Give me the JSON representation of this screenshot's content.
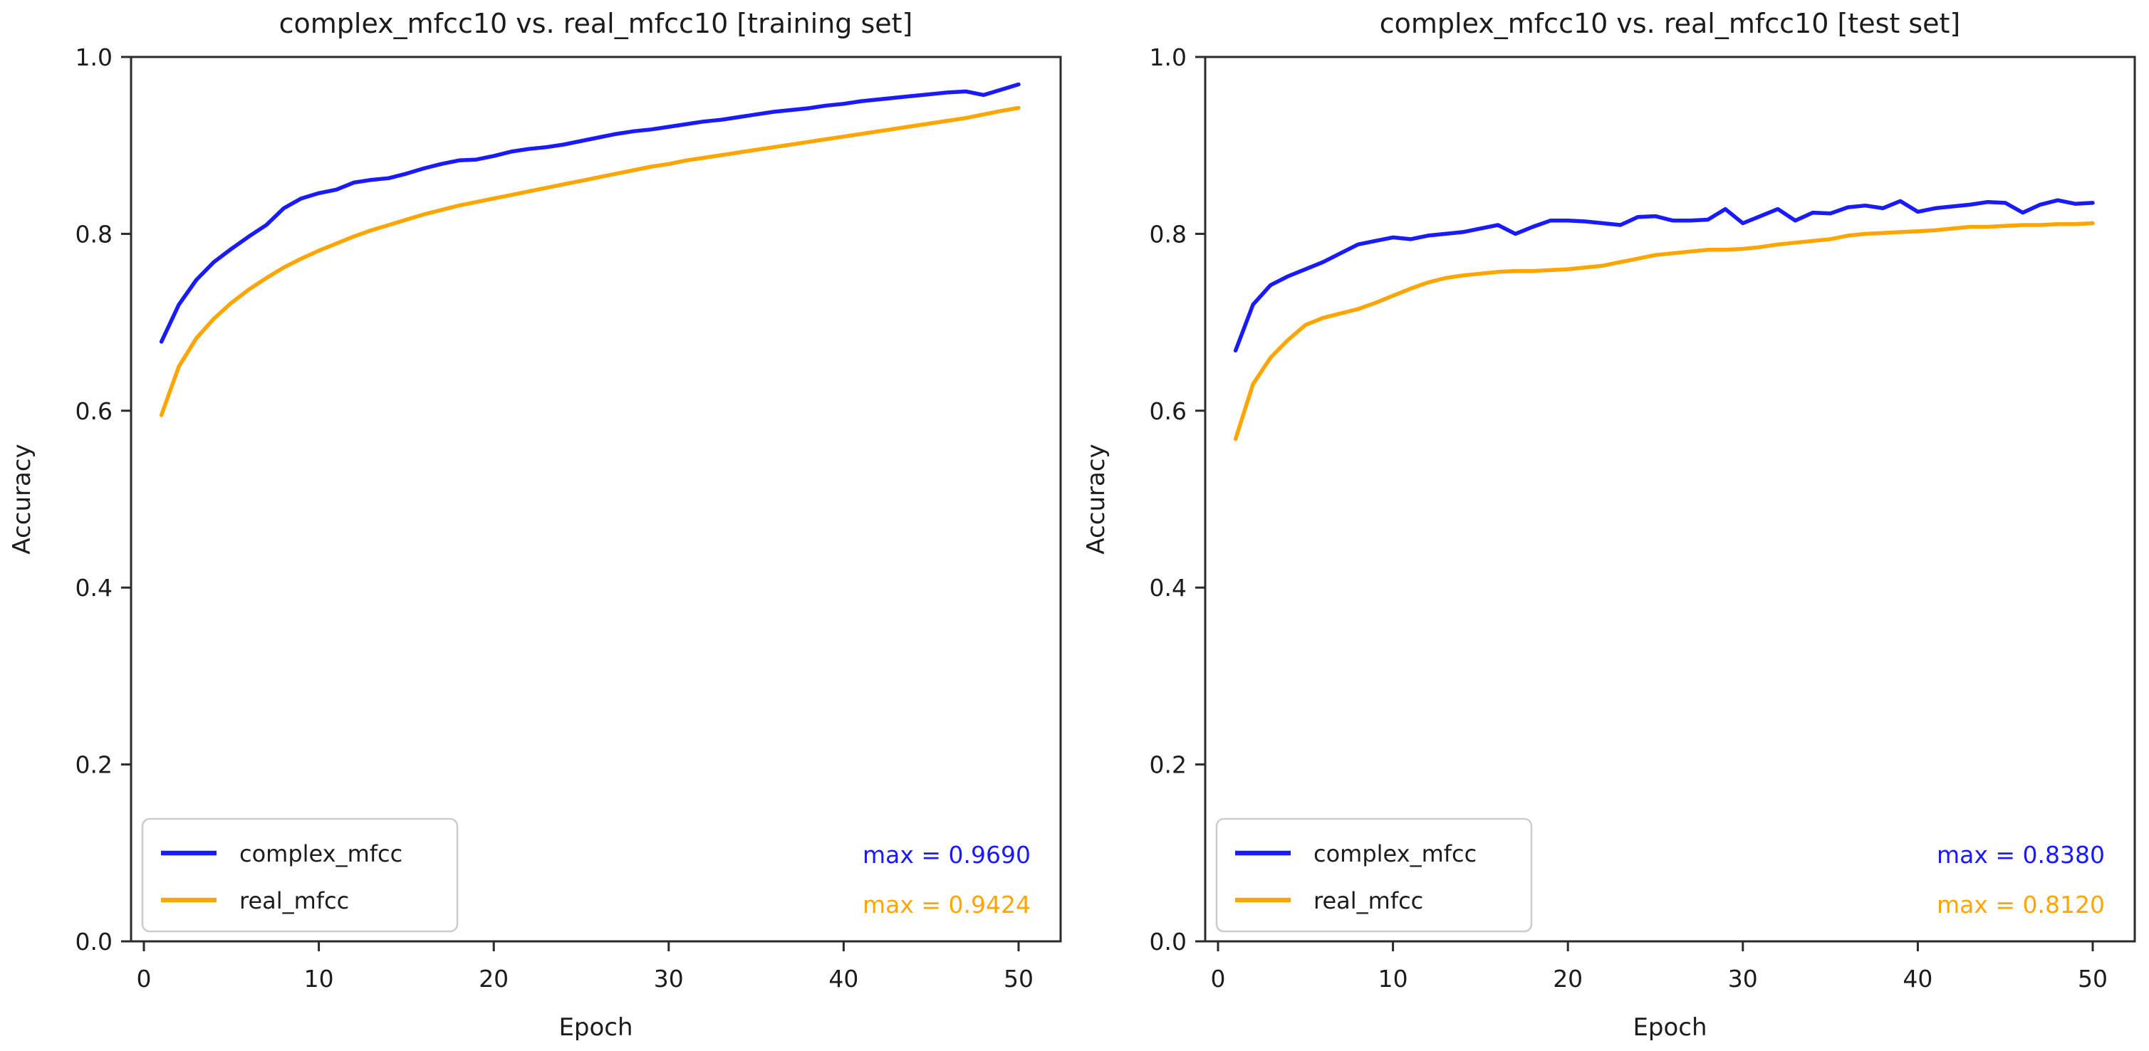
{
  "chart_data": [
    {
      "type": "line",
      "title": "complex_mfcc10 vs. real_mfcc10 [training set]",
      "xlabel": "Epoch",
      "ylabel": "Accuracy",
      "x_ticks": [
        0,
        10,
        20,
        30,
        40,
        50
      ],
      "y_ticks": [
        "0.0",
        "0.2",
        "0.4",
        "0.6",
        "0.8",
        "1.0"
      ],
      "ylim": [
        0.0,
        1.0
      ],
      "grid": false,
      "legend_position": "lower-left",
      "x": [
        1,
        2,
        3,
        4,
        5,
        6,
        7,
        8,
        9,
        10,
        11,
        12,
        13,
        14,
        15,
        16,
        17,
        18,
        19,
        20,
        21,
        22,
        23,
        24,
        25,
        26,
        27,
        28,
        29,
        30,
        31,
        32,
        33,
        34,
        35,
        36,
        37,
        38,
        39,
        40,
        41,
        42,
        43,
        44,
        45,
        46,
        47,
        48,
        49,
        50
      ],
      "series": [
        {
          "name": "complex_mfcc",
          "color": "#1a1aff",
          "values": [
            0.678,
            0.72,
            0.748,
            0.768,
            0.783,
            0.797,
            0.81,
            0.829,
            0.84,
            0.846,
            0.85,
            0.858,
            0.861,
            0.863,
            0.868,
            0.874,
            0.879,
            0.883,
            0.884,
            0.888,
            0.893,
            0.896,
            0.898,
            0.901,
            0.905,
            0.909,
            0.913,
            0.916,
            0.918,
            0.921,
            0.924,
            0.927,
            0.929,
            0.932,
            0.935,
            0.938,
            0.94,
            0.942,
            0.945,
            0.947,
            0.95,
            0.952,
            0.954,
            0.956,
            0.958,
            0.96,
            0.961,
            0.957,
            0.963,
            0.969
          ]
        },
        {
          "name": "real_mfcc",
          "color": "#ffa500",
          "values": [
            0.595,
            0.65,
            0.682,
            0.704,
            0.722,
            0.737,
            0.75,
            0.762,
            0.772,
            0.781,
            0.789,
            0.797,
            0.804,
            0.81,
            0.816,
            0.822,
            0.827,
            0.832,
            0.836,
            0.84,
            0.844,
            0.848,
            0.852,
            0.856,
            0.86,
            0.864,
            0.868,
            0.872,
            0.876,
            0.879,
            0.883,
            0.886,
            0.889,
            0.892,
            0.895,
            0.898,
            0.901,
            0.904,
            0.907,
            0.91,
            0.913,
            0.916,
            0.919,
            0.922,
            0.925,
            0.928,
            0.931,
            0.935,
            0.939,
            0.9424
          ]
        }
      ],
      "annotations": [
        {
          "text": "max = 0.9690",
          "value": 0.969,
          "color": "#1a1aff"
        },
        {
          "text": "max = 0.9424",
          "value": 0.9424,
          "color": "#ffa500"
        }
      ]
    },
    {
      "type": "line",
      "title": "complex_mfcc10 vs. real_mfcc10 [test set]",
      "xlabel": "Epoch",
      "ylabel": "Accuracy",
      "x_ticks": [
        0,
        10,
        20,
        30,
        40,
        50
      ],
      "y_ticks": [
        "0.0",
        "0.2",
        "0.4",
        "0.6",
        "0.8",
        "1.0"
      ],
      "ylim": [
        0.0,
        1.0
      ],
      "grid": false,
      "legend_position": "lower-left",
      "x": [
        1,
        2,
        3,
        4,
        5,
        6,
        7,
        8,
        9,
        10,
        11,
        12,
        13,
        14,
        15,
        16,
        17,
        18,
        19,
        20,
        21,
        22,
        23,
        24,
        25,
        26,
        27,
        28,
        29,
        30,
        31,
        32,
        33,
        34,
        35,
        36,
        37,
        38,
        39,
        40,
        41,
        42,
        43,
        44,
        45,
        46,
        47,
        48,
        49,
        50
      ],
      "series": [
        {
          "name": "complex_mfcc",
          "color": "#1a1aff",
          "values": [
            0.668,
            0.72,
            0.742,
            0.752,
            0.76,
            0.768,
            0.778,
            0.788,
            0.792,
            0.796,
            0.794,
            0.798,
            0.8,
            0.802,
            0.806,
            0.81,
            0.8,
            0.808,
            0.815,
            0.815,
            0.814,
            0.812,
            0.81,
            0.819,
            0.82,
            0.815,
            0.815,
            0.816,
            0.828,
            0.812,
            0.82,
            0.828,
            0.815,
            0.824,
            0.823,
            0.83,
            0.832,
            0.829,
            0.837,
            0.825,
            0.829,
            0.831,
            0.833,
            0.836,
            0.835,
            0.824,
            0.833,
            0.838,
            0.834,
            0.835
          ]
        },
        {
          "name": "real_mfcc",
          "color": "#ffa500",
          "values": [
            0.568,
            0.63,
            0.66,
            0.68,
            0.697,
            0.705,
            0.71,
            0.715,
            0.722,
            0.73,
            0.738,
            0.745,
            0.75,
            0.753,
            0.755,
            0.757,
            0.758,
            0.758,
            0.759,
            0.76,
            0.762,
            0.764,
            0.768,
            0.772,
            0.776,
            0.778,
            0.78,
            0.782,
            0.782,
            0.783,
            0.785,
            0.788,
            0.79,
            0.792,
            0.794,
            0.798,
            0.8,
            0.801,
            0.802,
            0.803,
            0.804,
            0.806,
            0.808,
            0.808,
            0.809,
            0.81,
            0.81,
            0.811,
            0.811,
            0.812
          ]
        }
      ],
      "annotations": [
        {
          "text": "max = 0.8380",
          "value": 0.838,
          "color": "#1a1aff"
        },
        {
          "text": "max = 0.8120",
          "value": 0.812,
          "color": "#ffa500"
        }
      ]
    }
  ],
  "style": {
    "spine_color": "#2b2b2b",
    "text_color": "#1c1c1c",
    "legend_border_color": "#cccccc",
    "background": "#ffffff"
  }
}
